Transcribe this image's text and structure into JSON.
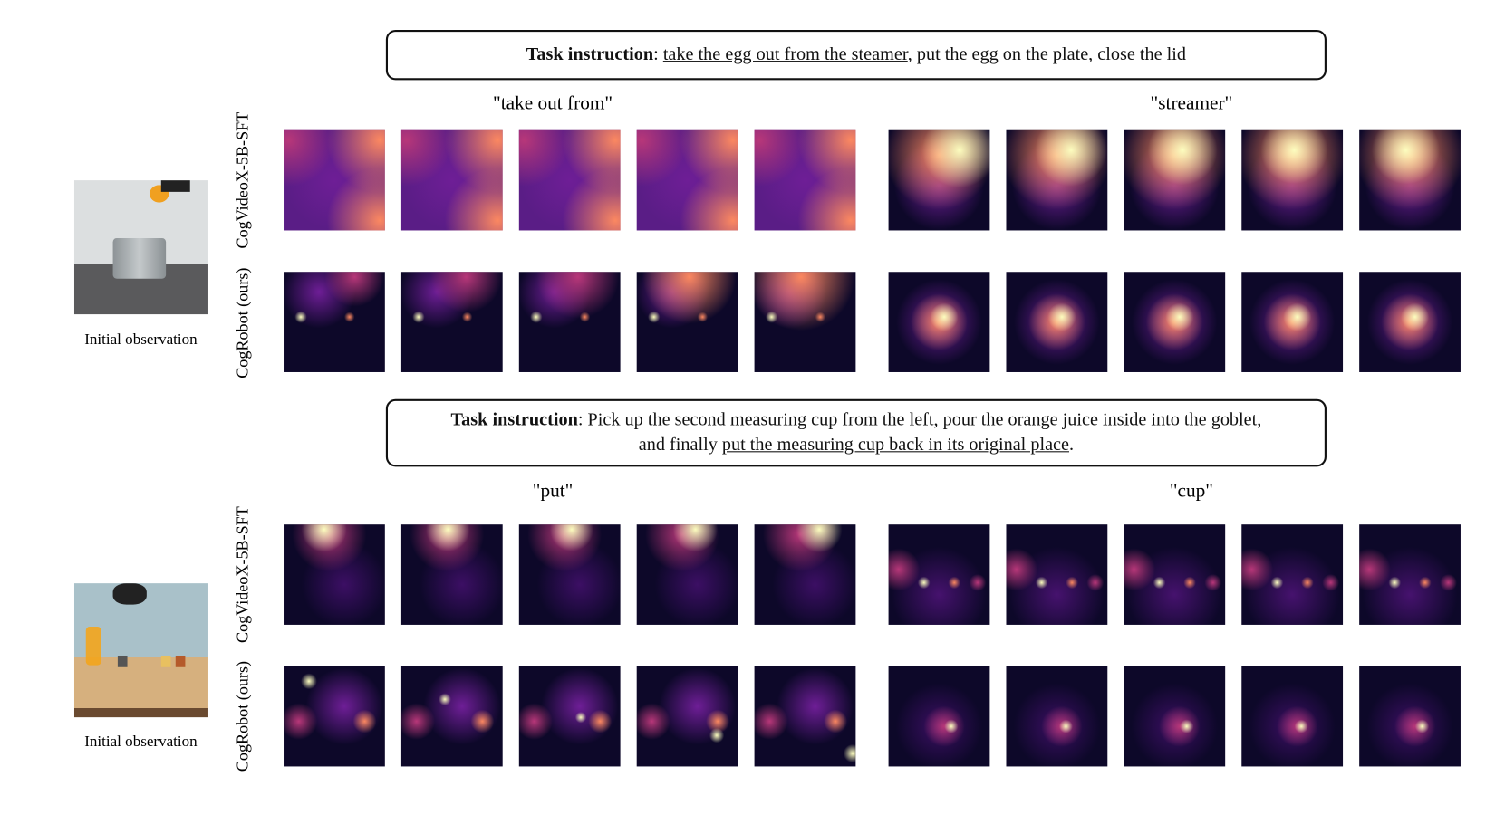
{
  "panels": [
    {
      "instruction": {
        "lines": [
          [
            {
              "text": "Task instruction",
              "bold": true,
              "underline": false
            },
            {
              "text": ": ",
              "bold": false,
              "underline": false
            },
            {
              "text": "take the egg out from the steamer",
              "bold": false,
              "underline": true
            },
            {
              "text": ", put the egg on the plate, close the lid",
              "bold": false,
              "underline": false
            }
          ]
        ]
      },
      "words": [
        "\"take out from\"",
        "\"streamer\""
      ],
      "rows": [
        "CogVideoX-5B-SFT",
        "CogRobot (ours)"
      ],
      "observation_caption": "Initial observation"
    },
    {
      "instruction": {
        "lines": [
          [
            {
              "text": "Task instruction",
              "bold": true,
              "underline": false
            },
            {
              "text": ": Pick up the second measuring cup from the left, pour the orange juice inside into the goblet,",
              "bold": false,
              "underline": false
            }
          ],
          [
            {
              "text": "and finally ",
              "bold": false,
              "underline": false
            },
            {
              "text": "put the measuring cup back in its original place",
              "bold": false,
              "underline": true
            },
            {
              "text": ".",
              "bold": false,
              "underline": false
            }
          ]
        ]
      },
      "words": [
        "\"put\"",
        "\"cup\""
      ],
      "rows": [
        "CogVideoX-5B-SFT",
        "CogRobot (ours)"
      ],
      "observation_caption": "Initial observation"
    }
  ]
}
